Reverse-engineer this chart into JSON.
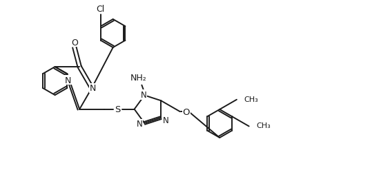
{
  "background_color": "#ffffff",
  "line_color": "#1a1a1a",
  "line_width": 1.4,
  "figsize": [
    5.36,
    2.51
  ],
  "dpi": 100,
  "xlim": [
    0,
    10.72
  ],
  "ylim": [
    0,
    5.02
  ]
}
